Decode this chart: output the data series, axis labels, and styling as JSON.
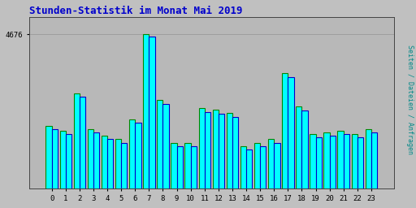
{
  "title": "Stunden-Statistik im Monat Mai 2019",
  "title_color": "#0000cc",
  "title_fontsize": 9,
  "ylabel_right": "Seiten / Dateien / Anfragen",
  "ylabel_right_color": "#008888",
  "background_color": "#c0c0c0",
  "plot_background": "#b8b8b8",
  "bar_color_cyan": "#00ffff",
  "bar_color_blue": "#0000cc",
  "bar_color_green_edge": "#008800",
  "categories": [
    0,
    1,
    2,
    3,
    4,
    5,
    6,
    7,
    8,
    9,
    10,
    11,
    12,
    13,
    14,
    15,
    16,
    17,
    18,
    19,
    20,
    21,
    22,
    23
  ],
  "values_a": [
    1900,
    1750,
    2900,
    1800,
    1600,
    1500,
    2100,
    4676,
    2700,
    1400,
    1400,
    2450,
    2400,
    2300,
    1300,
    1400,
    1500,
    3500,
    2500,
    1650,
    1700,
    1750,
    1650,
    1800
  ],
  "values_b": [
    1800,
    1650,
    2800,
    1700,
    1500,
    1380,
    2000,
    4600,
    2580,
    1300,
    1300,
    2330,
    2280,
    2180,
    1200,
    1300,
    1380,
    3380,
    2380,
    1550,
    1600,
    1650,
    1550,
    1700
  ],
  "ylim": [
    0,
    5200
  ],
  "ytick_val": 4676,
  "grid_color": "#999999",
  "border_color": "#444444"
}
